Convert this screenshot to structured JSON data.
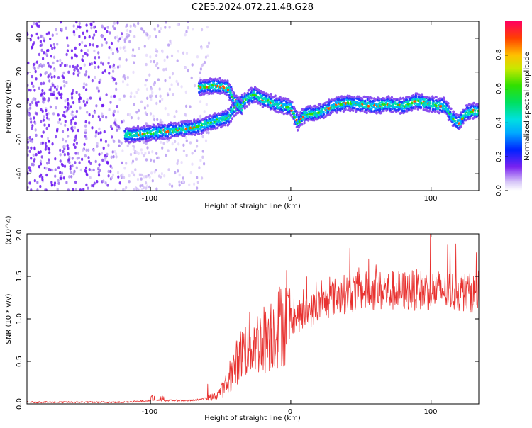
{
  "title": "C2E5.2024.072.21.48.G28",
  "chart_data": [
    {
      "type": "heatmap",
      "xlabel": "Height of straight line (km)",
      "ylabel": "Frequency (Hz)",
      "xlim": [
        -188,
        134
      ],
      "ylim": [
        -50,
        50
      ],
      "xticks": [
        "-100",
        "0",
        "100"
      ],
      "yticks": [
        "-40",
        "-20",
        "0",
        "20",
        "40"
      ],
      "colorbar": {
        "label": "Normalized spectral amplitude",
        "range": [
          0.0,
          1.0
        ],
        "ticks": [
          "0.0",
          "0.2",
          "0.4",
          "0.6",
          "0.8"
        ]
      },
      "ridge": {
        "x": [
          -118,
          -100,
          -80,
          -65,
          -55,
          -45,
          -40,
          -30,
          -25,
          -20,
          -10,
          0,
          5,
          10,
          20,
          30,
          40,
          50,
          60,
          70,
          80,
          90,
          100,
          110,
          115,
          120,
          125,
          130,
          134
        ],
        "y": [
          -17,
          -16,
          -14,
          -12,
          -9,
          -7,
          -1,
          5,
          7,
          4,
          1,
          -1,
          -10,
          -5,
          -4,
          0,
          2,
          1,
          0,
          1,
          0,
          3,
          1,
          0,
          -7,
          -10,
          -4,
          -3,
          -3
        ]
      },
      "upper_branch": {
        "x": [
          -65,
          -55,
          -45,
          -40,
          -35
        ],
        "y": [
          11,
          12,
          11,
          3,
          -1
        ]
      }
    },
    {
      "type": "line",
      "xlabel": "Height of straight line (km)",
      "ylabel": "SNR (10 * v/v)",
      "yscale_label": "(x10^4)",
      "xlim": [
        -188,
        134
      ],
      "ylim": [
        0.0,
        2.0
      ],
      "xticks": [
        "-100",
        "0",
        "100"
      ],
      "yticks": [
        "0.0",
        "0.5",
        "1.0",
        "1.5",
        "2.0"
      ],
      "color": "#e8312f",
      "series": [
        {
          "x": [
            -188,
            -120,
            -100,
            -70,
            -55,
            -45,
            -40,
            -35,
            -30,
            -20,
            -10,
            0,
            10,
            20,
            30,
            40,
            50,
            60,
            70,
            80,
            90,
            100,
            110,
            120,
            134
          ],
          "y": [
            0.02,
            0.02,
            0.04,
            0.04,
            0.08,
            0.22,
            0.45,
            0.6,
            0.7,
            0.75,
            0.9,
            1.0,
            1.05,
            1.15,
            1.25,
            1.3,
            1.32,
            1.33,
            1.33,
            1.33,
            1.34,
            1.34,
            1.33,
            1.32,
            1.3
          ]
        }
      ]
    }
  ]
}
